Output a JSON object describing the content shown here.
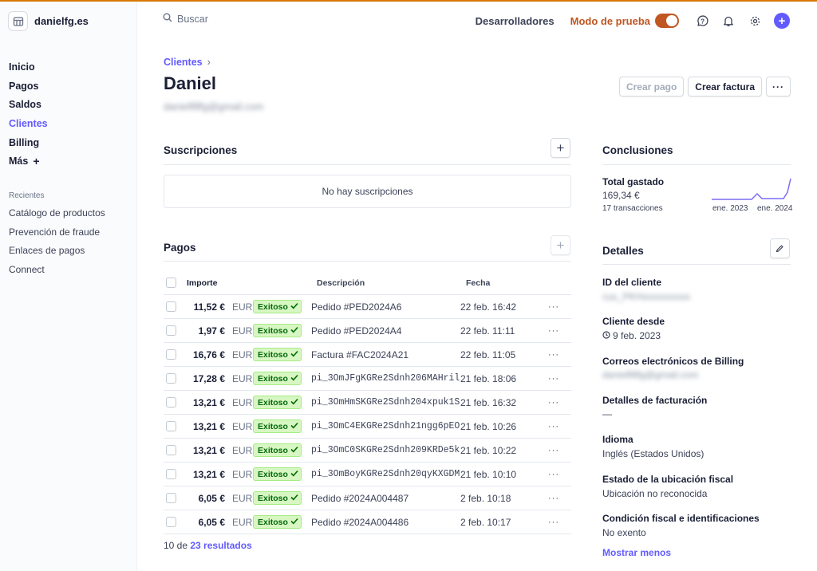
{
  "brand": {
    "name": "danielfg.es",
    "icon": "store-icon"
  },
  "sidebar": {
    "items": [
      {
        "label": "Inicio"
      },
      {
        "label": "Pagos"
      },
      {
        "label": "Saldos"
      },
      {
        "label": "Clientes",
        "active": true
      },
      {
        "label": "Billing"
      },
      {
        "label": "Más"
      }
    ],
    "more_suffix": "+",
    "recent_title": "Recientes",
    "recent": [
      {
        "label": "Catálogo de productos"
      },
      {
        "label": "Prevención de fraude"
      },
      {
        "label": "Enlaces de pagos"
      },
      {
        "label": "Connect"
      }
    ]
  },
  "topbar": {
    "search_placeholder": "Buscar",
    "developers": "Desarrolladores",
    "test_mode": "Modo de prueba",
    "test_mode_on": true,
    "icons": [
      "help-icon",
      "bell-icon",
      "gear-icon",
      "plus-icon"
    ],
    "accent": "#635bff",
    "test_color": "#c05621"
  },
  "header": {
    "breadcrumb": "Clientes",
    "title": "Daniel",
    "email": "danielfillfg@gmail.com",
    "btn_payment": "Crear pago",
    "btn_invoice": "Crear factura",
    "btn_more": "···"
  },
  "subscriptions": {
    "title": "Suscripciones",
    "empty": "No hay suscripciones"
  },
  "payments": {
    "title": "Pagos",
    "headers": {
      "amount": "Importe",
      "description": "Descripción",
      "date": "Fecha"
    },
    "status_color": "#d7f7c2",
    "rows": [
      {
        "amount": "11,52 €",
        "currency": "EUR",
        "status": "Exitoso",
        "description": "Pedido #PED2024A6",
        "mono": false,
        "date": "22 feb. 16:42"
      },
      {
        "amount": "1,97 €",
        "currency": "EUR",
        "status": "Exitoso",
        "description": "Pedido #PED2024A4",
        "mono": false,
        "date": "22 feb. 11:11"
      },
      {
        "amount": "16,76 €",
        "currency": "EUR",
        "status": "Exitoso",
        "description": "Factura #FAC2024A21",
        "mono": false,
        "date": "22 feb. 11:05"
      },
      {
        "amount": "17,28 €",
        "currency": "EUR",
        "status": "Exitoso",
        "description": "pi_3OmJFgKGRe2Sdnh206MAHril",
        "mono": true,
        "date": "21 feb. 18:06"
      },
      {
        "amount": "13,21 €",
        "currency": "EUR",
        "status": "Exitoso",
        "description": "pi_3OmHmSKGRe2Sdnh204xpuk1S",
        "mono": true,
        "date": "21 feb. 16:32"
      },
      {
        "amount": "13,21 €",
        "currency": "EUR",
        "status": "Exitoso",
        "description": "pi_3OmC4EKGRe2Sdnh21ngg6pEO",
        "mono": true,
        "date": "21 feb. 10:26"
      },
      {
        "amount": "13,21 €",
        "currency": "EUR",
        "status": "Exitoso",
        "description": "pi_3OmC0SKGRe2Sdnh209KRDe5k",
        "mono": true,
        "date": "21 feb. 10:22"
      },
      {
        "amount": "13,21 €",
        "currency": "EUR",
        "status": "Exitoso",
        "description": "pi_3OmBoyKGRe2Sdnh20qyKXGDM",
        "mono": true,
        "date": "21 feb. 10:10"
      },
      {
        "amount": "6,05 €",
        "currency": "EUR",
        "status": "Exitoso",
        "description": "Pedido #2024A004487",
        "mono": false,
        "date": "2 feb. 10:18"
      },
      {
        "amount": "6,05 €",
        "currency": "EUR",
        "status": "Exitoso",
        "description": "Pedido #2024A004486",
        "mono": false,
        "date": "2 feb. 10:17"
      }
    ],
    "results_prefix": "10 de",
    "results_link": "23 resultados"
  },
  "conclusions": {
    "title": "Conclusiones",
    "total_label": "Total gastado",
    "total_value": "169,34 €",
    "transactions": "17 transacciones",
    "spark_start": "ene. 2023",
    "spark_end": "ene. 2024"
  },
  "details": {
    "title": "Detalles",
    "customer_id_label": "ID del cliente",
    "customer_id": "cus_PKHxxxxxxxxxx",
    "since_label": "Cliente desde",
    "since": "9 feb. 2023",
    "billing_emails_label": "Correos electrónicos de Billing",
    "billing_emails": "danielfillfg@gmail.com",
    "billing_details_label": "Detalles de facturación",
    "billing_details": "—",
    "language_label": "Idioma",
    "language": "Inglés (Estados Unidos)",
    "tax_location_label": "Estado de la ubicación fiscal",
    "tax_location": "Ubicación no reconocida",
    "tax_status_label": "Condición fiscal e identificaciones",
    "tax_status": "No exento",
    "show_less": "Mostrar menos"
  }
}
